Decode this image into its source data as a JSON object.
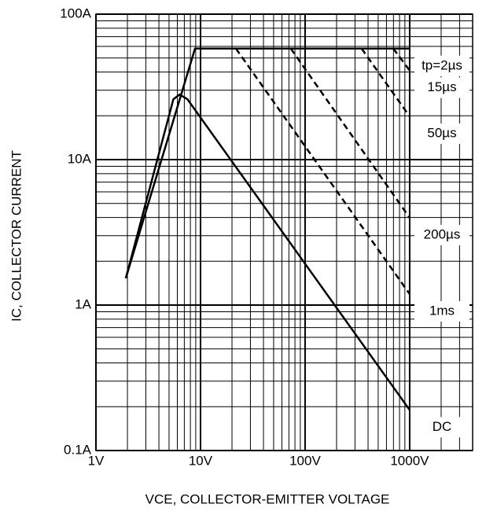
{
  "chart_data": {
    "type": "line",
    "x_label": "VCE, COLLECTOR-EMITTER VOLTAGE",
    "y_label": "IC, COLLECTOR CURRENT",
    "log_x": true,
    "log_y": true,
    "grid": true,
    "xlim": [
      1,
      4000
    ],
    "ylim": [
      0.1,
      100
    ],
    "xticks": [
      {
        "value": 1,
        "label": "1V"
      },
      {
        "value": 10,
        "label": "10V"
      },
      {
        "value": 100,
        "label": "100V"
      },
      {
        "value": 1000,
        "label": "1000V"
      }
    ],
    "yticks": [
      {
        "value": 0.1,
        "label": "0.1A"
      },
      {
        "value": 1,
        "label": "1A"
      },
      {
        "value": 10,
        "label": "10A"
      },
      {
        "value": 100,
        "label": "100A"
      }
    ],
    "series": [
      {
        "name": "tp=2µs",
        "color": "#000000",
        "dash": false,
        "x": [
          1.93,
          8.86,
          1000
        ],
        "values": [
          1.53,
          58,
          58
        ]
      },
      {
        "name": "15µs",
        "color": "#000000",
        "dash": true,
        "x": [
          697,
          1000
        ],
        "values": [
          58,
          41
        ]
      },
      {
        "name": "50µs",
        "color": "#000000",
        "dash": true,
        "x": [
          347,
          1000
        ],
        "values": [
          58,
          19.8
        ]
      },
      {
        "name": "200µs",
        "color": "#000000",
        "dash": true,
        "x": [
          73,
          1000
        ],
        "values": [
          58,
          3.98
        ]
      },
      {
        "name": "1ms",
        "color": "#000000",
        "dash": true,
        "x": [
          21.8,
          1000
        ],
        "values": [
          58,
          1.19
        ]
      },
      {
        "name": "DC",
        "color": "#000000",
        "dash": false,
        "x": [
          1.93,
          5.5,
          6.3,
          7.5,
          1000
        ],
        "values": [
          1.53,
          26,
          28,
          26,
          0.19
        ]
      }
    ]
  }
}
